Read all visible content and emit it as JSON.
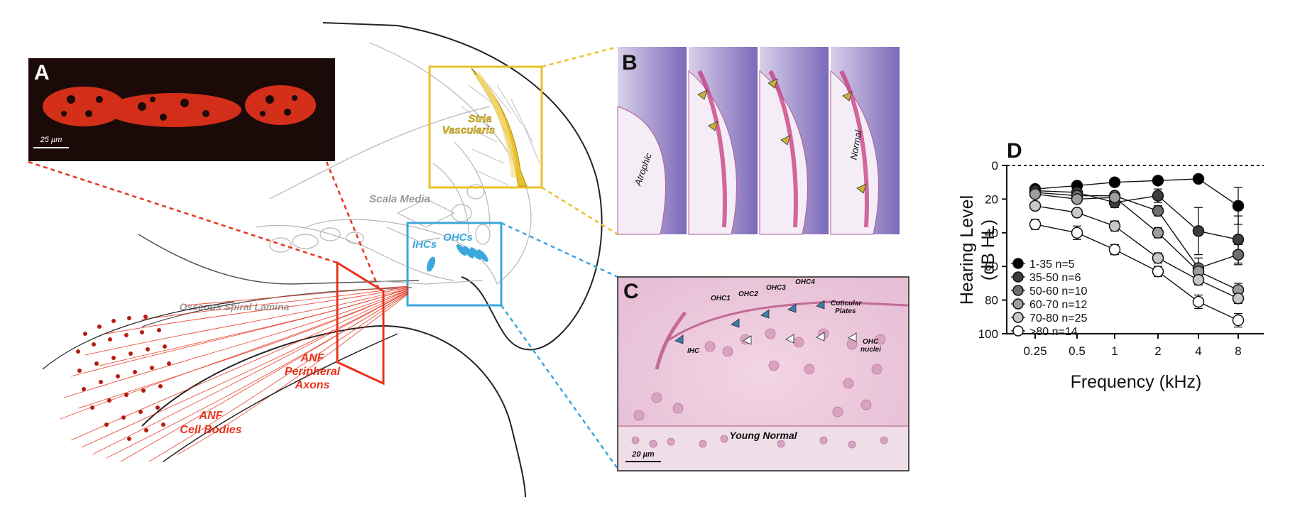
{
  "panels": {
    "a": {
      "letter": "A",
      "scalebar": "25 µm",
      "color": "#e8331c"
    },
    "b": {
      "letter": "B",
      "images": [
        "Atrophic",
        "",
        "",
        "Normal"
      ]
    },
    "c": {
      "letter": "C",
      "scalebar": "20 µm",
      "caption": "Young Normal",
      "labels": {
        "ihc": "IHC",
        "ohc1": "OHC1",
        "ohc2": "OHC2",
        "ohc3": "OHC3",
        "ohc4": "OHC4",
        "cuticular": [
          "Cuticular",
          "Plates"
        ],
        "ohc_nuclei": [
          "OHC",
          "nuclei"
        ]
      }
    },
    "d": {
      "letter": "D"
    }
  },
  "diagram": {
    "stria": [
      "Stria",
      "Vascularis"
    ],
    "scala_media": "Scala Media",
    "ihcs": "IHCs",
    "ohcs": "OHCs",
    "osseous": "Osseous Spiral Lamina",
    "anf_axons": [
      "ANF",
      "Peripheral",
      "Axons"
    ],
    "anf_bodies": [
      "ANF",
      "Cell Bodies"
    ],
    "colors": {
      "red": "#e8331c",
      "yellow": "#e9c12a",
      "blue": "#3ba7dc",
      "gray": "#9a9a9a"
    }
  },
  "chart_data": {
    "type": "line",
    "xlabel": "Frequency (kHz)",
    "ylabel": [
      "Hearing Level",
      "(dB HL)"
    ],
    "categories": [
      "0.25",
      "0.5",
      "1",
      "2",
      "4",
      "8"
    ],
    "ylim": [
      0,
      100
    ],
    "yticks": [
      "0",
      "20",
      "40",
      "60",
      "80",
      "100"
    ],
    "y_inverted": true,
    "reference_line": 0,
    "series": [
      {
        "name": "1-35 n=5",
        "fill": "#000000",
        "values": [
          14,
          12,
          10,
          9,
          8,
          24
        ],
        "err": [
          2,
          2,
          2,
          2,
          2,
          11
        ]
      },
      {
        "name": "35-50 n=6",
        "fill": "#3d3d3d",
        "values": [
          15,
          16,
          22,
          18,
          39,
          44
        ],
        "err": [
          2,
          3,
          3,
          4,
          14,
          14
        ]
      },
      {
        "name": "50-60 n=10",
        "fill": "#6e6e6e",
        "values": [
          16,
          18,
          18,
          27,
          61,
          53
        ],
        "err": [
          2,
          2,
          2,
          3,
          6,
          6
        ]
      },
      {
        "name": "60-70 n=12",
        "fill": "#9d9d9d",
        "values": [
          17,
          20,
          19,
          40,
          63,
          74
        ],
        "err": [
          2,
          2,
          2,
          3,
          4,
          4
        ]
      },
      {
        "name": "70-80 n=25",
        "fill": "#c8c8c8",
        "values": [
          24,
          28,
          36,
          55,
          68,
          79
        ],
        "err": [
          2,
          2,
          3,
          3,
          3,
          3
        ]
      },
      {
        "name": ">80 n=14",
        "fill": "#ffffff",
        "values": [
          35,
          40,
          50,
          63,
          81,
          92
        ],
        "err": [
          3,
          4,
          3,
          3,
          4,
          4
        ]
      }
    ],
    "legend_position": "left"
  }
}
